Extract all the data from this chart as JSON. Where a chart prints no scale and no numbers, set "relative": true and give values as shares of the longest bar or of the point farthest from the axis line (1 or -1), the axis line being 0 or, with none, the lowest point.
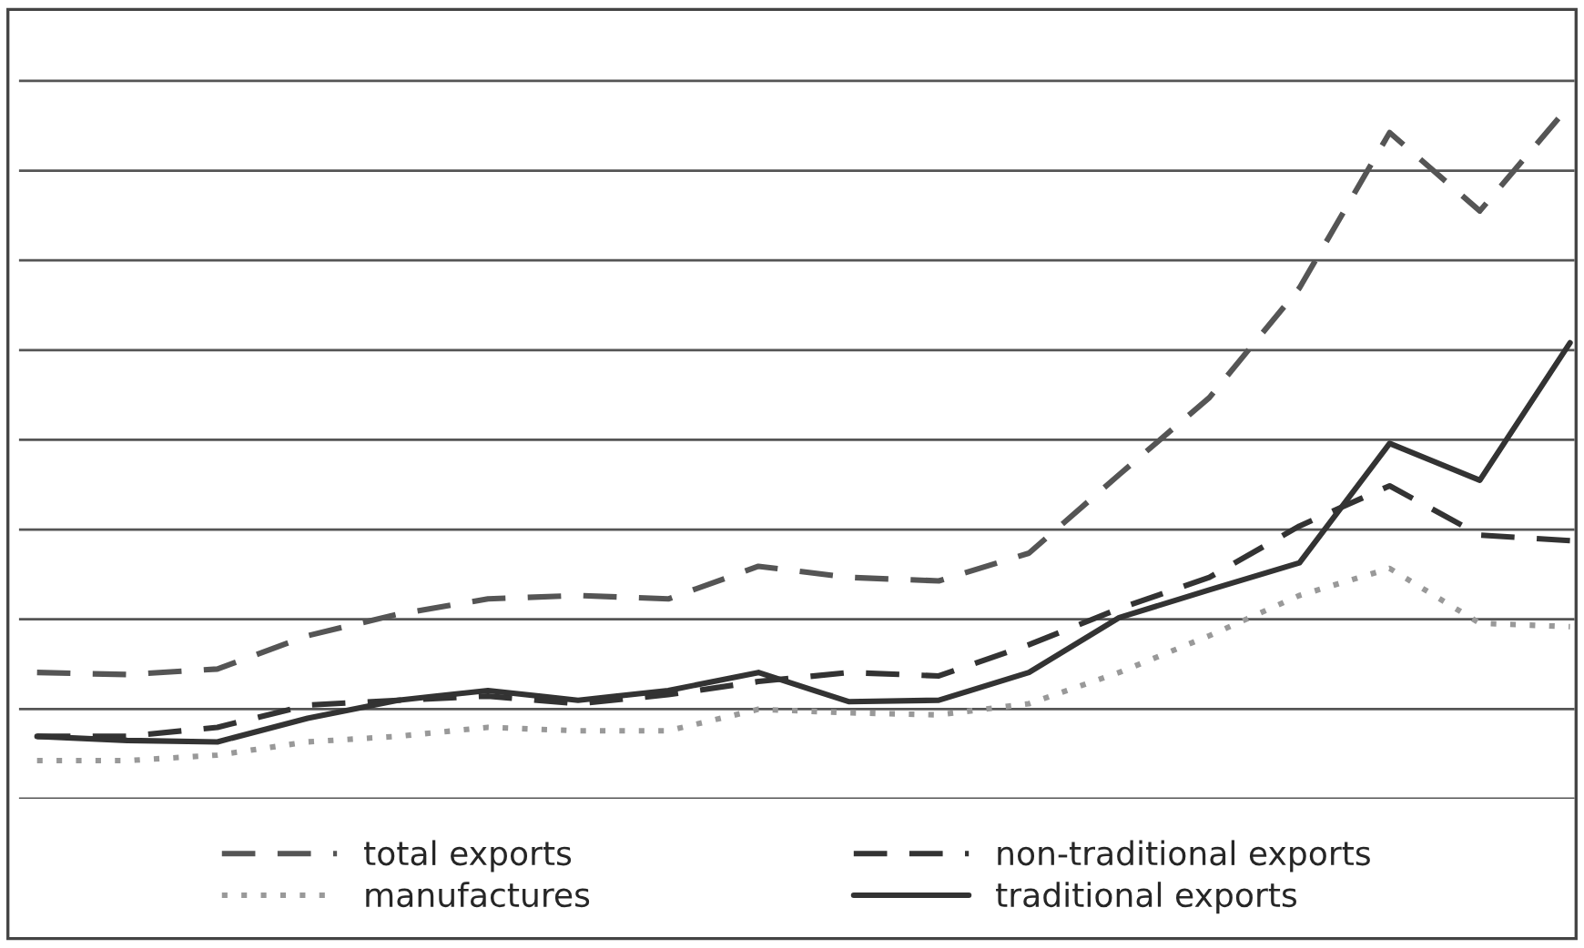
{
  "chart_data": {
    "type": "line",
    "relative": true,
    "grid": "y",
    "legend": "bottom",
    "tick_labels": false,
    "categories": [
      null,
      null,
      null,
      null,
      null,
      null,
      null,
      null,
      null,
      null,
      null,
      null,
      null,
      null,
      null,
      null,
      null,
      null
    ],
    "series": [
      {
        "name": "total exports",
        "color": "#555555",
        "line_style": "dashed",
        "values": [
          0.182,
          0.179,
          0.187,
          0.235,
          0.266,
          0.288,
          0.293,
          0.288,
          0.335,
          0.319,
          0.314,
          0.354,
          0.467,
          0.578,
          0.736,
          0.96,
          0.847,
          1
        ]
      },
      {
        "name": "non-traditional exports",
        "color": "#333333",
        "line_style": "dashed",
        "values": [
          0.09,
          0.09,
          0.103,
          0.135,
          0.142,
          0.148,
          0.137,
          0.15,
          0.169,
          0.182,
          0.177,
          0.222,
          0.274,
          0.319,
          0.393,
          0.451,
          0.38,
          0.372
        ]
      },
      {
        "name": "manufactures",
        "color": "#999999",
        "line_style": "dotted",
        "values": [
          0.055,
          0.055,
          0.063,
          0.082,
          0.09,
          0.103,
          0.098,
          0.098,
          0.129,
          0.124,
          0.121,
          0.137,
          0.182,
          0.235,
          0.293,
          0.332,
          0.253,
          0.248
        ]
      },
      {
        "name": "traditional exports",
        "color": "#333333",
        "line_style": "solid",
        "values": [
          0.09,
          0.084,
          0.082,
          0.116,
          0.142,
          0.156,
          0.142,
          0.156,
          0.182,
          0.14,
          0.142,
          0.182,
          0.261,
          0.301,
          0.34,
          0.512,
          0.459,
          0.657
        ]
      }
    ]
  }
}
